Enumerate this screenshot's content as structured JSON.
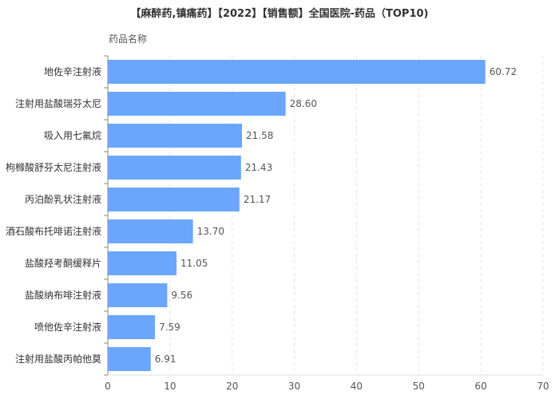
{
  "chart_data": {
    "type": "bar",
    "orientation": "horizontal",
    "title": "【麻醉药,镇痛药】【2022】【销售额】全国医院-药品（TOP10)",
    "ylabel": "药品名称",
    "xlabel": "",
    "xlim": [
      0,
      70
    ],
    "xticks": [
      "0",
      "10",
      "20",
      "30",
      "40",
      "50",
      "60",
      "70"
    ],
    "grid": true,
    "categories": [
      "地佐辛注射液",
      "注射用盐酸瑞芬太尼",
      "吸入用七氟烷",
      "枸橼酸舒芬太尼注射液",
      "丙泊酚乳状注射液",
      "酒石酸布托啡诺注射液",
      "盐酸羟考酮缓释片",
      "盐酸纳布啡注射液",
      "喷他佐辛注射液",
      "注射用盐酸丙帕他莫"
    ],
    "values": [
      60.72,
      28.6,
      21.58,
      21.43,
      21.17,
      13.7,
      11.05,
      9.56,
      7.59,
      6.91
    ],
    "value_labels": [
      "60.72",
      "28.60",
      "21.58",
      "21.43",
      "21.17",
      "13.70",
      "11.05",
      "9.56",
      "7.59",
      "6.91"
    ],
    "bar_color": "#6aa6fc"
  }
}
